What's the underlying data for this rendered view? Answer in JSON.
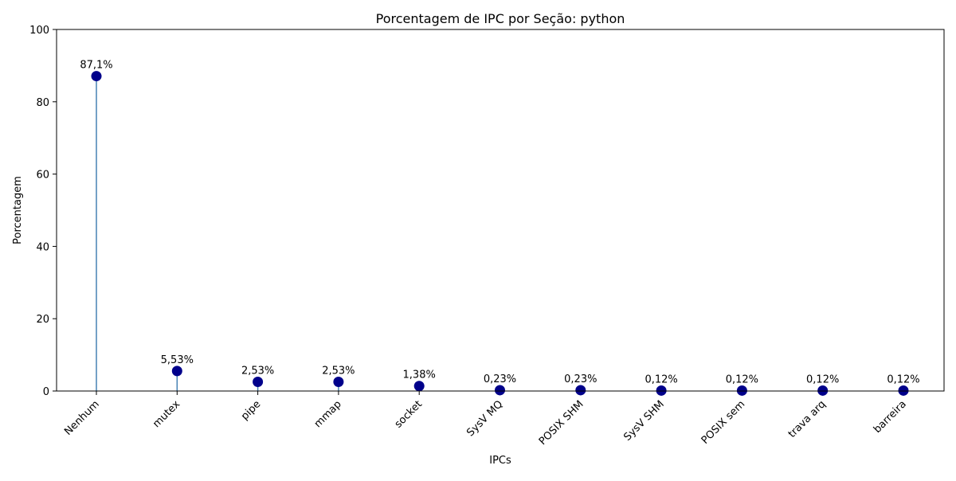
{
  "chart_data": {
    "type": "lollipop",
    "title": "Porcentagem de IPC por Seção: python",
    "xlabel": "IPCs",
    "ylabel": "Porcentagem",
    "ylim": [
      0,
      100
    ],
    "yticks": [
      0,
      20,
      40,
      60,
      80,
      100
    ],
    "grid": false,
    "categories": [
      "Nenhum",
      "mutex",
      "pipe",
      "mmap",
      "socket",
      "SysV MQ",
      "POSIX SHM",
      "SysV SHM",
      "POSIX sem",
      "trava arq",
      "barreira"
    ],
    "values": [
      87.1,
      5.53,
      2.53,
      2.53,
      1.38,
      0.23,
      0.23,
      0.12,
      0.12,
      0.12,
      0.12
    ],
    "value_labels": [
      "87,1%",
      "5,53%",
      "2,53%",
      "2,53%",
      "1,38%",
      "0,23%",
      "0,23%",
      "0,12%",
      "0,12%",
      "0,12%",
      "0,12%"
    ],
    "colors": {
      "stem": "#4682b4",
      "marker": "#00008b"
    }
  }
}
